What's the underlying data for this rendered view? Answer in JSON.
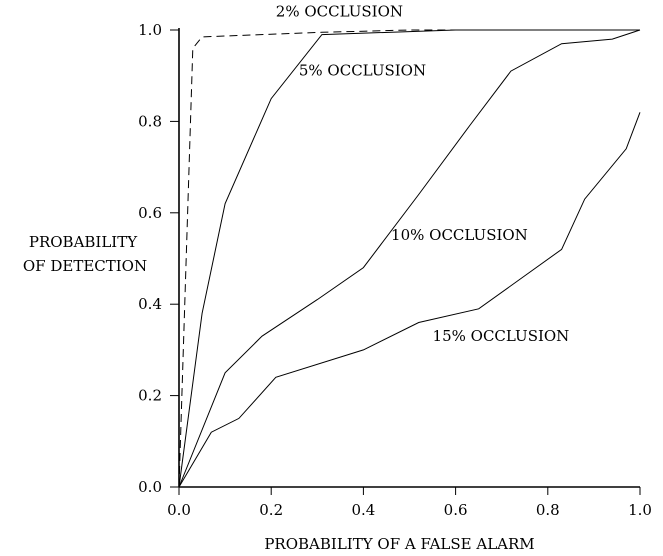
{
  "chart_data": {
    "type": "line",
    "xlabel": "PROBABILITY OF A FALSE ALARM",
    "ylabel": [
      "PROBABILITY",
      "OF DETECTION"
    ],
    "xlim": [
      0,
      1
    ],
    "ylim": [
      0,
      1
    ],
    "x_ticks": [
      "0.0",
      "0.2",
      "0.4",
      "0.6",
      "0.8",
      "1.0"
    ],
    "y_ticks": [
      "0.0",
      "0.2",
      "0.4",
      "0.6",
      "0.8",
      "1.0"
    ],
    "grid": false,
    "legend": "none",
    "series": [
      {
        "name": "2% OCCLUSION",
        "style": "dashed",
        "x": [
          0.0,
          0.03,
          0.05,
          0.31,
          0.5,
          1.0
        ],
        "y": [
          0.0,
          0.96,
          0.985,
          0.995,
          1.0,
          1.0
        ]
      },
      {
        "name": "5% OCCLUSION",
        "style": "solid",
        "x": [
          0.0,
          0.05,
          0.1,
          0.2,
          0.31,
          0.6,
          1.0
        ],
        "y": [
          0.0,
          0.38,
          0.62,
          0.85,
          0.99,
          1.0,
          1.0
        ]
      },
      {
        "name": "10% OCCLUSION",
        "style": "solid",
        "x": [
          0.0,
          0.1,
          0.18,
          0.3,
          0.4,
          0.52,
          0.63,
          0.72,
          0.83,
          0.94,
          1.0
        ],
        "y": [
          0.0,
          0.25,
          0.33,
          0.41,
          0.48,
          0.64,
          0.79,
          0.91,
          0.97,
          0.98,
          1.0
        ]
      },
      {
        "name": "15% OCCLUSION",
        "style": "solid",
        "x": [
          0.0,
          0.07,
          0.13,
          0.21,
          0.4,
          0.52,
          0.65,
          0.83,
          0.88,
          0.97,
          1.0
        ],
        "y": [
          0.0,
          0.12,
          0.15,
          0.24,
          0.3,
          0.36,
          0.39,
          0.52,
          0.63,
          0.74,
          0.82
        ]
      }
    ]
  }
}
